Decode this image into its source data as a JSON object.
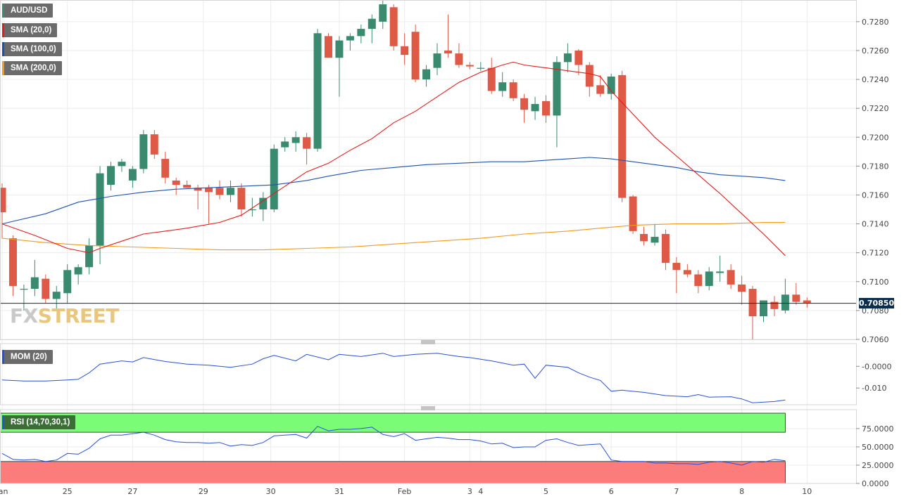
{
  "legend": {
    "symbol": "AUD/USD",
    "sma20": "SMA (20,0)",
    "sma100": "SMA (100,0)",
    "sma200": "SMA (200,0)",
    "mom": "MOM (20)",
    "rsi": "RSI (14,70,30,1)"
  },
  "watermark": {
    "part1": "FX",
    "part2": "STREET"
  },
  "last_price": "0.70850",
  "colors": {
    "up": "#3a8a70",
    "down": "#de5a47",
    "sma20": "#e51c1c",
    "sma100": "#1c52b0",
    "sma200": "#f39a1a",
    "mom": "#2a4fd9",
    "rsi": "#2a4fd9",
    "rsi_over": "#7bfc77",
    "rsi_under": "#fc7b7b"
  },
  "chart_data": [
    {
      "type": "candlestick",
      "ylim": [
        0.706,
        0.7295
      ],
      "yticks": [
        "0.7060",
        "0.7080",
        "0.7100",
        "0.7120",
        "0.7140",
        "0.7160",
        "0.7180",
        "0.7200",
        "0.7220",
        "0.7240",
        "0.7260",
        "0.7280"
      ],
      "xticks": [
        {
          "label": "Jan",
          "i": 0
        },
        {
          "label": "25",
          "i": 6
        },
        {
          "label": "27",
          "i": 12
        },
        {
          "label": "29",
          "i": 18.5
        },
        {
          "label": "30",
          "i": 24.7
        },
        {
          "label": "31",
          "i": 31
        },
        {
          "label": "Feb",
          "i": 37
        },
        {
          "label": "3",
          "i": 43
        },
        {
          "label": "4",
          "i": 44
        },
        {
          "label": "5",
          "i": 50
        },
        {
          "label": "6",
          "i": 56
        },
        {
          "label": "7",
          "i": 62
        },
        {
          "label": "8",
          "i": 68
        },
        {
          "label": "10",
          "i": 74
        }
      ],
      "candles": [
        [
          0.7165,
          0.7168,
          0.713,
          0.7148
        ],
        [
          0.713,
          0.7132,
          0.709,
          0.7097
        ],
        [
          0.7095,
          0.7098,
          0.708,
          0.7095
        ],
        [
          0.7095,
          0.7115,
          0.709,
          0.7103
        ],
        [
          0.7102,
          0.7105,
          0.7085,
          0.7088
        ],
        [
          0.7088,
          0.7097,
          0.708,
          0.7093
        ],
        [
          0.7092,
          0.7112,
          0.7085,
          0.7108
        ],
        [
          0.7105,
          0.7112,
          0.7098,
          0.711
        ],
        [
          0.711,
          0.713,
          0.7105,
          0.7125
        ],
        [
          0.7125,
          0.718,
          0.7112,
          0.7175
        ],
        [
          0.7167,
          0.7183,
          0.7163,
          0.718
        ],
        [
          0.718,
          0.7185,
          0.7176,
          0.7183
        ],
        [
          0.717,
          0.718,
          0.7165,
          0.7178
        ],
        [
          0.7178,
          0.7205,
          0.7175,
          0.7202
        ],
        [
          0.7202,
          0.7205,
          0.7185,
          0.7188
        ],
        [
          0.7185,
          0.719,
          0.7168,
          0.7172
        ],
        [
          0.717,
          0.7172,
          0.716,
          0.7167
        ],
        [
          0.7167,
          0.717,
          0.7165,
          0.7165
        ],
        [
          0.7165,
          0.7167,
          0.715,
          0.7163
        ],
        [
          0.7165,
          0.7167,
          0.714,
          0.7162
        ],
        [
          0.7165,
          0.717,
          0.7157,
          0.716
        ],
        [
          0.716,
          0.717,
          0.7155,
          0.7165
        ],
        [
          0.7165,
          0.7168,
          0.7145,
          0.715
        ],
        [
          0.715,
          0.7158,
          0.7145,
          0.715
        ],
        [
          0.715,
          0.7162,
          0.7142,
          0.7158
        ],
        [
          0.715,
          0.7195,
          0.7148,
          0.7192
        ],
        [
          0.7193,
          0.72,
          0.719,
          0.7197
        ],
        [
          0.7196,
          0.7204,
          0.719,
          0.72
        ],
        [
          0.72,
          0.7203,
          0.7181,
          0.7192
        ],
        [
          0.7192,
          0.7275,
          0.719,
          0.7272
        ],
        [
          0.727,
          0.7272,
          0.7255,
          0.7255
        ],
        [
          0.7255,
          0.727,
          0.7228,
          0.7267
        ],
        [
          0.7267,
          0.7272,
          0.726,
          0.727
        ],
        [
          0.727,
          0.7278,
          0.7265,
          0.7275
        ],
        [
          0.7275,
          0.7285,
          0.7265,
          0.7282
        ],
        [
          0.728,
          0.7295,
          0.7275,
          0.7292
        ],
        [
          0.729,
          0.7292,
          0.726,
          0.7263
        ],
        [
          0.7263,
          0.7272,
          0.725,
          0.7257
        ],
        [
          0.7273,
          0.7278,
          0.7238,
          0.724
        ],
        [
          0.724,
          0.725,
          0.7235,
          0.7247
        ],
        [
          0.7248,
          0.7265,
          0.7243,
          0.7258
        ],
        [
          0.726,
          0.7285,
          0.7255,
          0.7258
        ],
        [
          0.7258,
          0.7265,
          0.7248,
          0.725
        ],
        [
          0.725,
          0.7252,
          0.7247,
          0.7249
        ],
        [
          0.7248,
          0.7252,
          0.7246,
          0.7248
        ],
        [
          0.7248,
          0.7255,
          0.723,
          0.7232
        ],
        [
          0.7232,
          0.7245,
          0.7228,
          0.7238
        ],
        [
          0.7238,
          0.724,
          0.7225,
          0.7227
        ],
        [
          0.7227,
          0.723,
          0.721,
          0.7219
        ],
        [
          0.7218,
          0.7228,
          0.7212,
          0.7223
        ],
        [
          0.7225,
          0.7229,
          0.721,
          0.7215
        ],
        [
          0.7215,
          0.7256,
          0.7193,
          0.7252
        ],
        [
          0.7252,
          0.7265,
          0.7245,
          0.7258
        ],
        [
          0.726,
          0.7261,
          0.7243,
          0.725
        ],
        [
          0.725,
          0.7252,
          0.7228,
          0.7235
        ],
        [
          0.7236,
          0.7243,
          0.7228,
          0.723
        ],
        [
          0.723,
          0.7244,
          0.7226,
          0.7242
        ],
        [
          0.7243,
          0.7246,
          0.7155,
          0.7158
        ],
        [
          0.7159,
          0.716,
          0.7133,
          0.7135
        ],
        [
          0.7133,
          0.7138,
          0.7125,
          0.7128
        ],
        [
          0.7127,
          0.714,
          0.7125,
          0.7131
        ],
        [
          0.7133,
          0.7136,
          0.7108,
          0.7113
        ],
        [
          0.7113,
          0.7117,
          0.7092,
          0.7108
        ],
        [
          0.7108,
          0.7112,
          0.7103,
          0.7105
        ],
        [
          0.7105,
          0.7108,
          0.7092,
          0.7097
        ],
        [
          0.7097,
          0.711,
          0.7094,
          0.7107
        ],
        [
          0.7106,
          0.7118,
          0.71,
          0.7107
        ],
        [
          0.7108,
          0.7112,
          0.7095,
          0.7098
        ],
        [
          0.7098,
          0.7104,
          0.7084,
          0.7093
        ],
        [
          0.7095,
          0.7097,
          0.706,
          0.7076
        ],
        [
          0.7076,
          0.7087,
          0.7072,
          0.7087
        ],
        [
          0.7086,
          0.709,
          0.7076,
          0.7081
        ],
        [
          0.708,
          0.7102,
          0.7078,
          0.7091
        ],
        [
          0.7091,
          0.7099,
          0.7084,
          0.7086
        ],
        [
          0.7087,
          0.7089,
          0.7082,
          0.7085
        ]
      ],
      "sma20": [
        [
          0,
          0.714
        ],
        [
          3,
          0.7132
        ],
        [
          6,
          0.7123
        ],
        [
          8,
          0.712
        ],
        [
          9,
          0.7123
        ],
        [
          11,
          0.7128
        ],
        [
          13,
          0.7133
        ],
        [
          15,
          0.7135
        ],
        [
          17,
          0.7137
        ],
        [
          20,
          0.7141
        ],
        [
          22,
          0.7146
        ],
        [
          24,
          0.7156
        ],
        [
          26,
          0.7166
        ],
        [
          28,
          0.7176
        ],
        [
          30,
          0.7182
        ],
        [
          32,
          0.7191
        ],
        [
          34,
          0.7199
        ],
        [
          36,
          0.721
        ],
        [
          38,
          0.7218
        ],
        [
          40,
          0.7228
        ],
        [
          42,
          0.7238
        ],
        [
          44,
          0.7245
        ],
        [
          46,
          0.725
        ],
        [
          47,
          0.7252
        ],
        [
          48,
          0.725
        ],
        [
          50,
          0.7248
        ],
        [
          52,
          0.7246
        ],
        [
          54,
          0.7244
        ],
        [
          55,
          0.7242
        ],
        [
          56,
          0.7232
        ],
        [
          58,
          0.7216
        ],
        [
          60,
          0.72
        ],
        [
          62,
          0.7187
        ],
        [
          64,
          0.7174
        ],
        [
          66,
          0.7161
        ],
        [
          68,
          0.7147
        ],
        [
          70,
          0.7133
        ],
        [
          72,
          0.7118
        ]
      ],
      "sma100": [
        [
          0,
          0.714
        ],
        [
          4,
          0.7147
        ],
        [
          7,
          0.7155
        ],
        [
          10,
          0.7159
        ],
        [
          13,
          0.7162
        ],
        [
          16,
          0.7164
        ],
        [
          19,
          0.7165
        ],
        [
          22,
          0.7166
        ],
        [
          25,
          0.7167
        ],
        [
          28,
          0.717
        ],
        [
          30,
          0.7173
        ],
        [
          33,
          0.7177
        ],
        [
          36,
          0.7179
        ],
        [
          39,
          0.7181
        ],
        [
          42,
          0.7182
        ],
        [
          45,
          0.7183
        ],
        [
          48,
          0.7183
        ],
        [
          50,
          0.7184
        ],
        [
          52,
          0.7185
        ],
        [
          54,
          0.7186
        ],
        [
          56,
          0.7185
        ],
        [
          58,
          0.7183
        ],
        [
          60,
          0.7181
        ],
        [
          62,
          0.7179
        ],
        [
          64,
          0.7176
        ],
        [
          66,
          0.7174
        ],
        [
          68,
          0.7173
        ],
        [
          70,
          0.7172
        ],
        [
          72,
          0.717
        ]
      ],
      "sma200": [
        [
          0,
          0.713
        ],
        [
          4,
          0.7127
        ],
        [
          8,
          0.7125
        ],
        [
          12,
          0.7124
        ],
        [
          16,
          0.7123
        ],
        [
          20,
          0.7122
        ],
        [
          24,
          0.7122
        ],
        [
          28,
          0.7123
        ],
        [
          32,
          0.7124
        ],
        [
          36,
          0.7126
        ],
        [
          40,
          0.7128
        ],
        [
          44,
          0.713
        ],
        [
          48,
          0.7133
        ],
        [
          52,
          0.7135
        ],
        [
          55,
          0.7137
        ],
        [
          58,
          0.7139
        ],
        [
          62,
          0.714
        ],
        [
          66,
          0.714
        ],
        [
          70,
          0.7141
        ],
        [
          72,
          0.7141
        ]
      ]
    },
    {
      "type": "line",
      "name": "MOM (20)",
      "ylim": [
        -0.0177,
        0.0098
      ],
      "yticks": [
        "-0.0000",
        "-0.010"
      ],
      "values": [
        [
          0,
          -0.0063
        ],
        [
          2,
          -0.0068
        ],
        [
          4,
          -0.0068
        ],
        [
          6,
          -0.0063
        ],
        [
          7,
          -0.006
        ],
        [
          8,
          -0.003
        ],
        [
          9,
          0.001
        ],
        [
          11,
          0.0025
        ],
        [
          12,
          0.002
        ],
        [
          13,
          0.004
        ],
        [
          15,
          0.0022
        ],
        [
          17,
          0.001
        ],
        [
          19,
          0.0005
        ],
        [
          21,
          -0.0005
        ],
        [
          23,
          0.001
        ],
        [
          24,
          0.0035
        ],
        [
          25,
          0.005
        ],
        [
          27,
          0.0025
        ],
        [
          28,
          0.0055
        ],
        [
          30,
          0.003
        ],
        [
          31,
          0.0055
        ],
        [
          33,
          0.0045
        ],
        [
          35,
          0.006
        ],
        [
          36,
          0.0045
        ],
        [
          38,
          0.0055
        ],
        [
          40,
          0.006
        ],
        [
          42,
          0.0045
        ],
        [
          43,
          0.004
        ],
        [
          45,
          0.0025
        ],
        [
          47,
          0.0005
        ],
        [
          48,
          0.001
        ],
        [
          49,
          -0.0055
        ],
        [
          50,
          0.0005
        ],
        [
          52,
          -0.0005
        ],
        [
          53,
          -0.003
        ],
        [
          54,
          -0.005
        ],
        [
          55,
          -0.0065
        ],
        [
          56,
          -0.0115
        ],
        [
          57,
          -0.011
        ],
        [
          59,
          -0.012
        ],
        [
          61,
          -0.0135
        ],
        [
          63,
          -0.014
        ],
        [
          64,
          -0.013
        ],
        [
          65,
          -0.0142
        ],
        [
          67,
          -0.014
        ],
        [
          68,
          -0.015
        ],
        [
          69,
          -0.0168
        ],
        [
          71,
          -0.0162
        ],
        [
          72,
          -0.0155
        ]
      ]
    },
    {
      "type": "line",
      "name": "RSI (14,70,30,1)",
      "ylim": [
        0,
        98
      ],
      "yticks": [
        "75.0000",
        "50.0000",
        "25.0000",
        "0.0000"
      ],
      "overbought": 70,
      "oversold": 30,
      "values": [
        [
          0,
          41
        ],
        [
          1,
          33
        ],
        [
          2,
          32
        ],
        [
          3,
          33
        ],
        [
          4,
          30
        ],
        [
          5,
          32
        ],
        [
          6,
          41
        ],
        [
          7,
          40
        ],
        [
          8,
          48
        ],
        [
          9,
          61
        ],
        [
          10,
          66
        ],
        [
          11,
          66
        ],
        [
          12,
          68
        ],
        [
          13,
          70
        ],
        [
          14,
          66
        ],
        [
          15,
          60
        ],
        [
          16,
          57
        ],
        [
          17,
          56
        ],
        [
          18,
          56
        ],
        [
          19,
          55
        ],
        [
          20,
          56
        ],
        [
          21,
          51
        ],
        [
          22,
          53
        ],
        [
          23,
          52
        ],
        [
          24,
          56
        ],
        [
          25,
          65
        ],
        [
          26,
          66
        ],
        [
          27,
          67
        ],
        [
          28,
          62
        ],
        [
          29,
          78
        ],
        [
          30,
          72
        ],
        [
          31,
          74
        ],
        [
          32,
          74
        ],
        [
          33,
          75
        ],
        [
          34,
          77
        ],
        [
          35,
          67
        ],
        [
          36,
          64
        ],
        [
          37,
          68
        ],
        [
          38,
          59
        ],
        [
          39,
          61
        ],
        [
          40,
          63
        ],
        [
          41,
          62
        ],
        [
          42,
          60
        ],
        [
          43,
          60
        ],
        [
          44,
          58
        ],
        [
          45,
          54
        ],
        [
          46,
          55
        ],
        [
          47,
          49
        ],
        [
          48,
          50
        ],
        [
          49,
          50
        ],
        [
          50,
          59
        ],
        [
          51,
          61
        ],
        [
          52,
          56
        ],
        [
          53,
          52
        ],
        [
          54,
          53
        ],
        [
          55,
          54
        ],
        [
          56,
          32
        ],
        [
          57,
          30
        ],
        [
          58,
          30
        ],
        [
          59,
          30
        ],
        [
          60,
          28
        ],
        [
          61,
          28
        ],
        [
          62,
          27
        ],
        [
          63,
          27
        ],
        [
          64,
          26
        ],
        [
          65,
          29
        ],
        [
          66,
          30
        ],
        [
          67,
          28
        ],
        [
          68,
          25
        ],
        [
          69,
          30
        ],
        [
          70,
          29
        ],
        [
          71,
          33
        ],
        [
          72,
          31
        ]
      ]
    }
  ]
}
